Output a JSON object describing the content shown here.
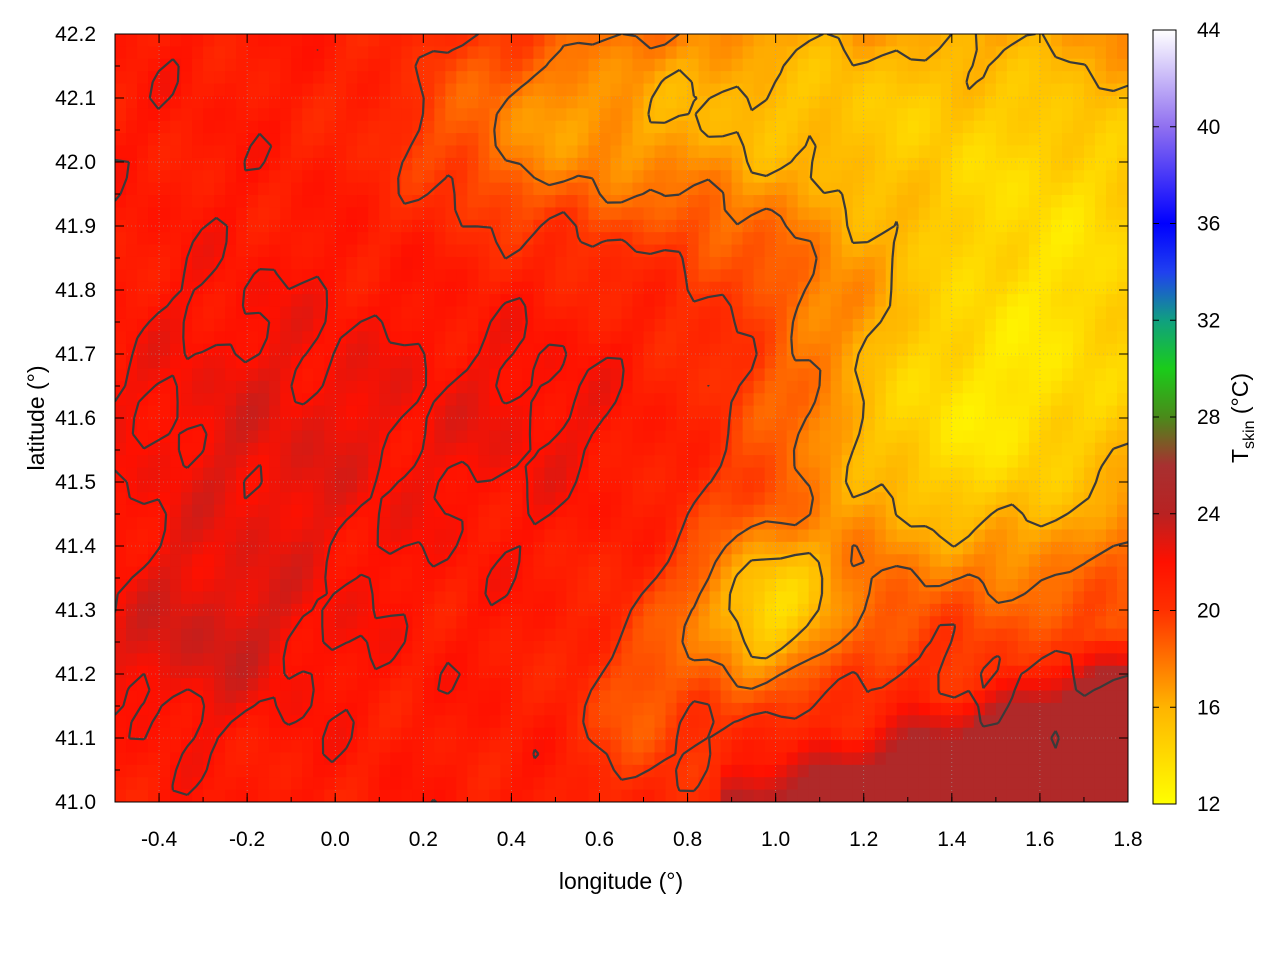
{
  "chart_data": {
    "type": "heatmap",
    "xlabel": "longitude (°)",
    "ylabel": "latitude (°)",
    "xlim": [
      -0.5,
      1.8
    ],
    "ylim": [
      41.0,
      42.2
    ],
    "x_ticks": [
      -0.4,
      -0.2,
      0.0,
      0.2,
      0.4,
      0.6,
      0.8,
      1.0,
      1.2,
      1.4,
      1.6,
      1.8
    ],
    "x_tick_labels": [
      "-0.4",
      "-0.2",
      "0.0",
      "0.2",
      "0.4",
      "0.6",
      "0.8",
      "1.0",
      "1.2",
      "1.4",
      "1.6",
      "1.8"
    ],
    "y_ticks": [
      41.0,
      41.1,
      41.2,
      41.3,
      41.4,
      41.5,
      41.6,
      41.7,
      41.8,
      41.9,
      42.0,
      42.1,
      42.2
    ],
    "y_tick_labels": [
      "41.0",
      "41.1",
      "41.2",
      "41.3",
      "41.4",
      "41.5",
      "41.6",
      "41.7",
      "41.8",
      "41.9",
      "42.0",
      "42.1",
      "42.2"
    ],
    "grid": true,
    "colorbar": {
      "label_main": "T",
      "label_sub": "skin",
      "label_unit": " (°C)",
      "range": [
        12,
        44
      ],
      "ticks": [
        12,
        16,
        20,
        24,
        28,
        32,
        36,
        40,
        44
      ],
      "tick_labels": [
        "12",
        "16",
        "20",
        "24",
        "28",
        "32",
        "36",
        "40",
        "44"
      ],
      "stops": [
        {
          "v": 12,
          "color": "#ffff00"
        },
        {
          "v": 16,
          "color": "#ffb400"
        },
        {
          "v": 20,
          "color": "#ff3000"
        },
        {
          "v": 22,
          "color": "#ff1000"
        },
        {
          "v": 24,
          "color": "#b82222"
        },
        {
          "v": 26,
          "color": "#a83030"
        },
        {
          "v": 28,
          "color": "#4a8a1a"
        },
        {
          "v": 30,
          "color": "#1acc1a"
        },
        {
          "v": 32,
          "color": "#10a080"
        },
        {
          "v": 34,
          "color": "#2040f0"
        },
        {
          "v": 36,
          "color": "#0000ff"
        },
        {
          "v": 40,
          "color": "#9070f0"
        },
        {
          "v": 44,
          "color": "#ffffff"
        }
      ]
    },
    "field_description": "skin temperature: ~21-23 °C west and centre, 13-16 °C north-east and around (1.0, 41.3), ~25 °C sea in south-east",
    "contour_levels": [
      16,
      18,
      20,
      22
    ]
  }
}
